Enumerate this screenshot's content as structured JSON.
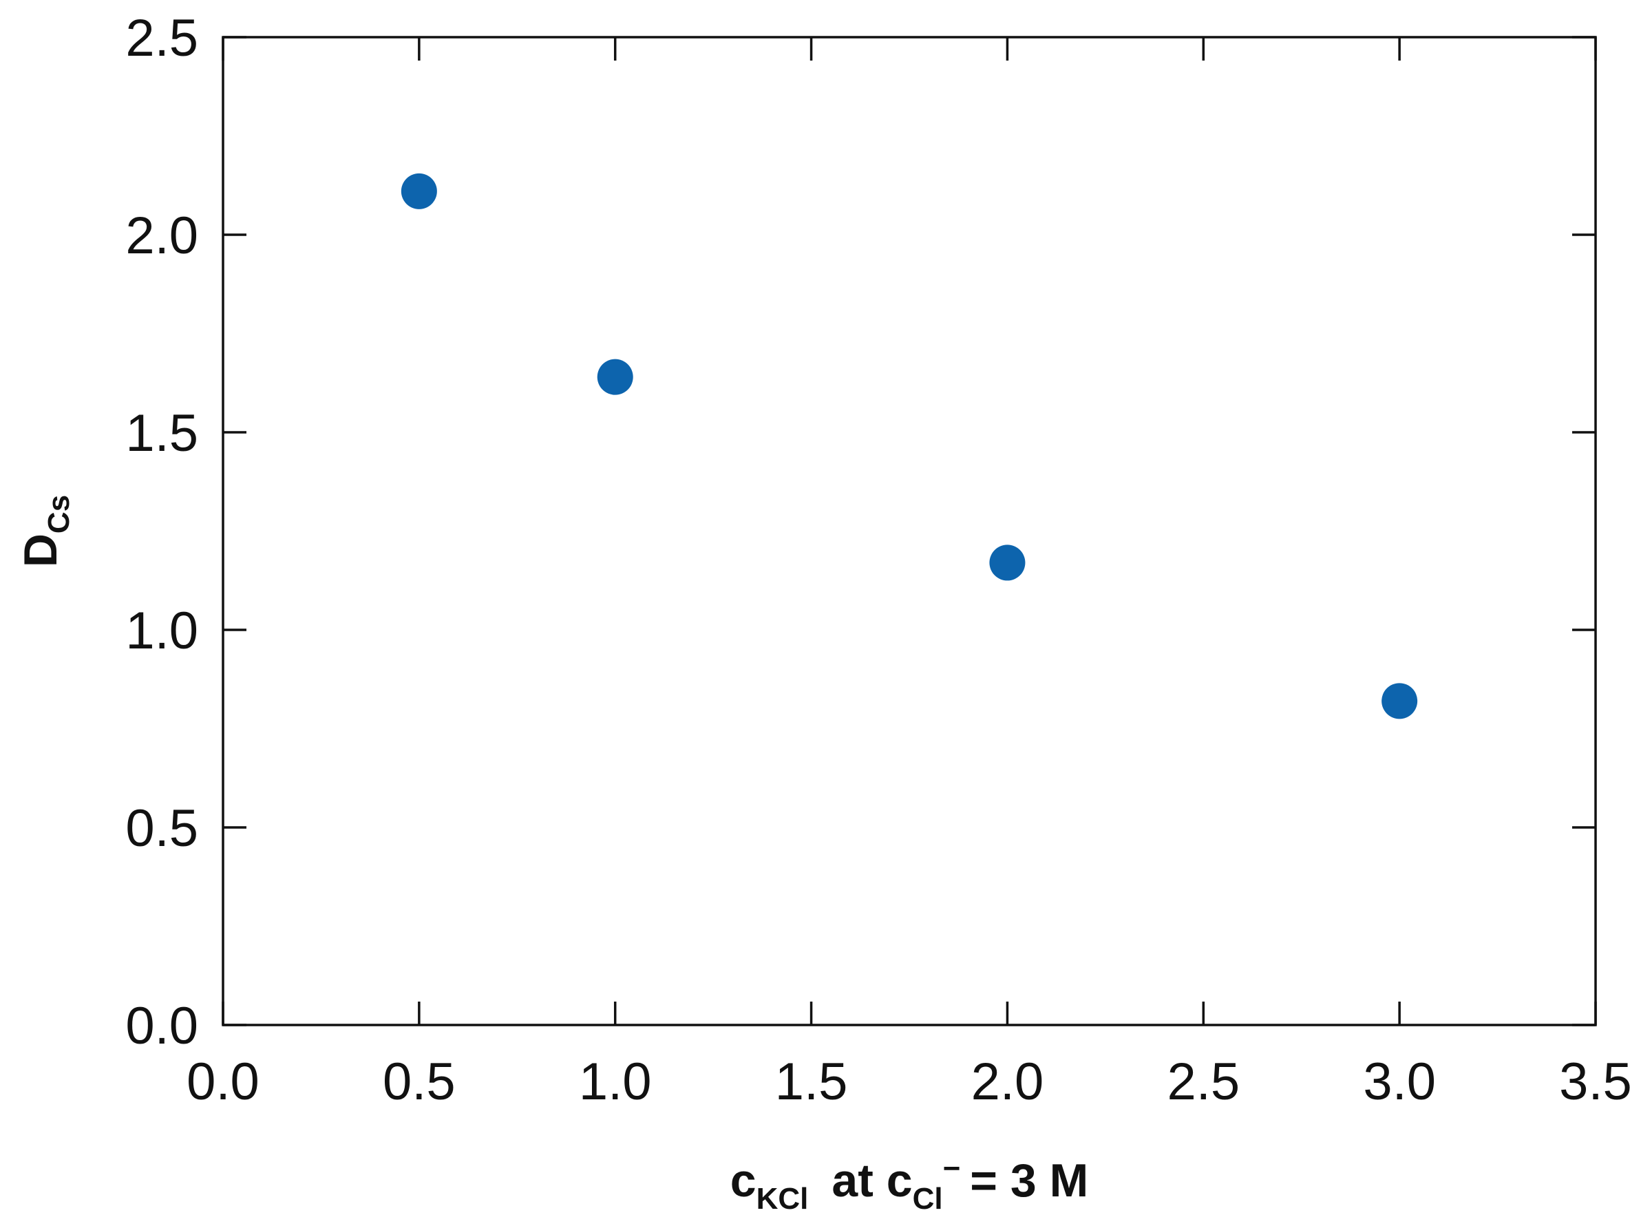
{
  "chart_data": {
    "type": "scatter",
    "title": "",
    "xlabel": {
      "main": "c",
      "main_sub": "KCl",
      "mid": "at c",
      "mid_sub": "Cl",
      "mid_sup": "−",
      "tail": "= 3 M"
    },
    "ylabel": {
      "main": "D",
      "sub": "Cs"
    },
    "xlim": [
      0.0,
      3.5
    ],
    "ylim": [
      0.0,
      2.5
    ],
    "xticks": [
      0.0,
      0.5,
      1.0,
      1.5,
      2.0,
      2.5,
      3.0,
      3.5
    ],
    "yticks": [
      0.0,
      0.5,
      1.0,
      1.5,
      2.0,
      2.5
    ],
    "xtick_labels": [
      "0.0",
      "0.5",
      "1.0",
      "1.5",
      "2.0",
      "2.5",
      "3.0",
      "3.5"
    ],
    "ytick_labels": [
      "0.0",
      "0.5",
      "1.0",
      "1.5",
      "2.0",
      "2.5"
    ],
    "grid": false,
    "legend": "none",
    "series": [
      {
        "color": "#0d64ad",
        "points": [
          {
            "x": 0.5,
            "y": 2.11
          },
          {
            "x": 1.0,
            "y": 1.64
          },
          {
            "x": 2.0,
            "y": 1.17
          },
          {
            "x": 3.0,
            "y": 0.82
          }
        ]
      }
    ]
  }
}
